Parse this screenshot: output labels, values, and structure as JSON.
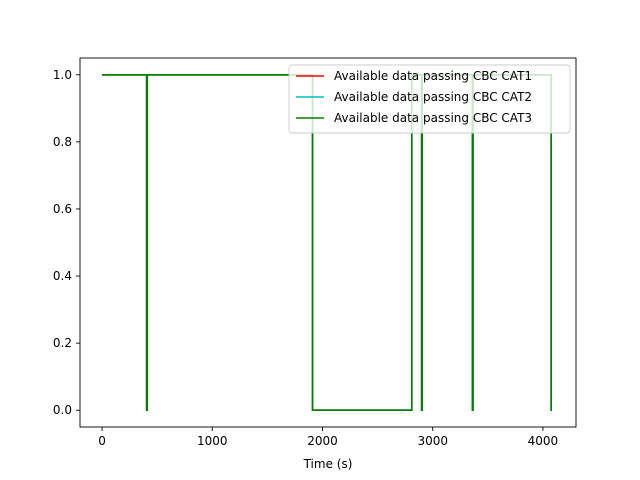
{
  "chart_data": {
    "type": "line",
    "title": "",
    "xlabel": "Time (s)",
    "ylabel": "",
    "xlim": [
      -200,
      4300
    ],
    "ylim": [
      -0.05,
      1.05
    ],
    "xticks": [
      0,
      1000,
      2000,
      3000,
      4000
    ],
    "yticks": [
      0.0,
      0.2,
      0.4,
      0.6,
      0.8,
      1.0
    ],
    "xtick_labels": [
      "0",
      "1000",
      "2000",
      "3000",
      "4000"
    ],
    "ytick_labels": [
      "0.0",
      "0.2",
      "0.4",
      "0.6",
      "0.8",
      "1.0"
    ],
    "grid": false,
    "legend_position": "top-right",
    "series": [
      {
        "name": "Available data passing CBC CAT1",
        "color": "#ff0000",
        "x": [
          0,
          405,
          405,
          410,
          410,
          1910,
          1910,
          2810,
          2810,
          2900,
          2900,
          2905,
          2905,
          3360,
          3360,
          3365,
          3365,
          4075,
          4075,
          4080
        ],
        "y": [
          1,
          1,
          0,
          0,
          1,
          1,
          0,
          0,
          1,
          1,
          0,
          0,
          1,
          1,
          0,
          0,
          1,
          1,
          0,
          0
        ]
      },
      {
        "name": "Available data passing CBC CAT2",
        "color": "#00bfbf",
        "x": [
          0,
          405,
          405,
          410,
          410,
          1910,
          1910,
          2810,
          2810,
          2900,
          2900,
          2905,
          2905,
          3360,
          3360,
          3365,
          3365,
          4075,
          4075,
          4080
        ],
        "y": [
          1,
          1,
          0,
          0,
          1,
          1,
          0,
          0,
          1,
          1,
          0,
          0,
          1,
          1,
          0,
          0,
          1,
          1,
          0,
          0
        ]
      },
      {
        "name": "Available data passing CBC CAT3",
        "color": "#008000",
        "x": [
          0,
          405,
          405,
          410,
          410,
          1910,
          1910,
          2810,
          2810,
          2900,
          2900,
          2905,
          2905,
          3360,
          3360,
          3365,
          3365,
          4075,
          4075,
          4080
        ],
        "y": [
          1,
          1,
          0,
          0,
          1,
          1,
          0,
          0,
          1,
          1,
          0,
          0,
          1,
          1,
          0,
          0,
          1,
          1,
          0,
          0
        ]
      }
    ]
  }
}
